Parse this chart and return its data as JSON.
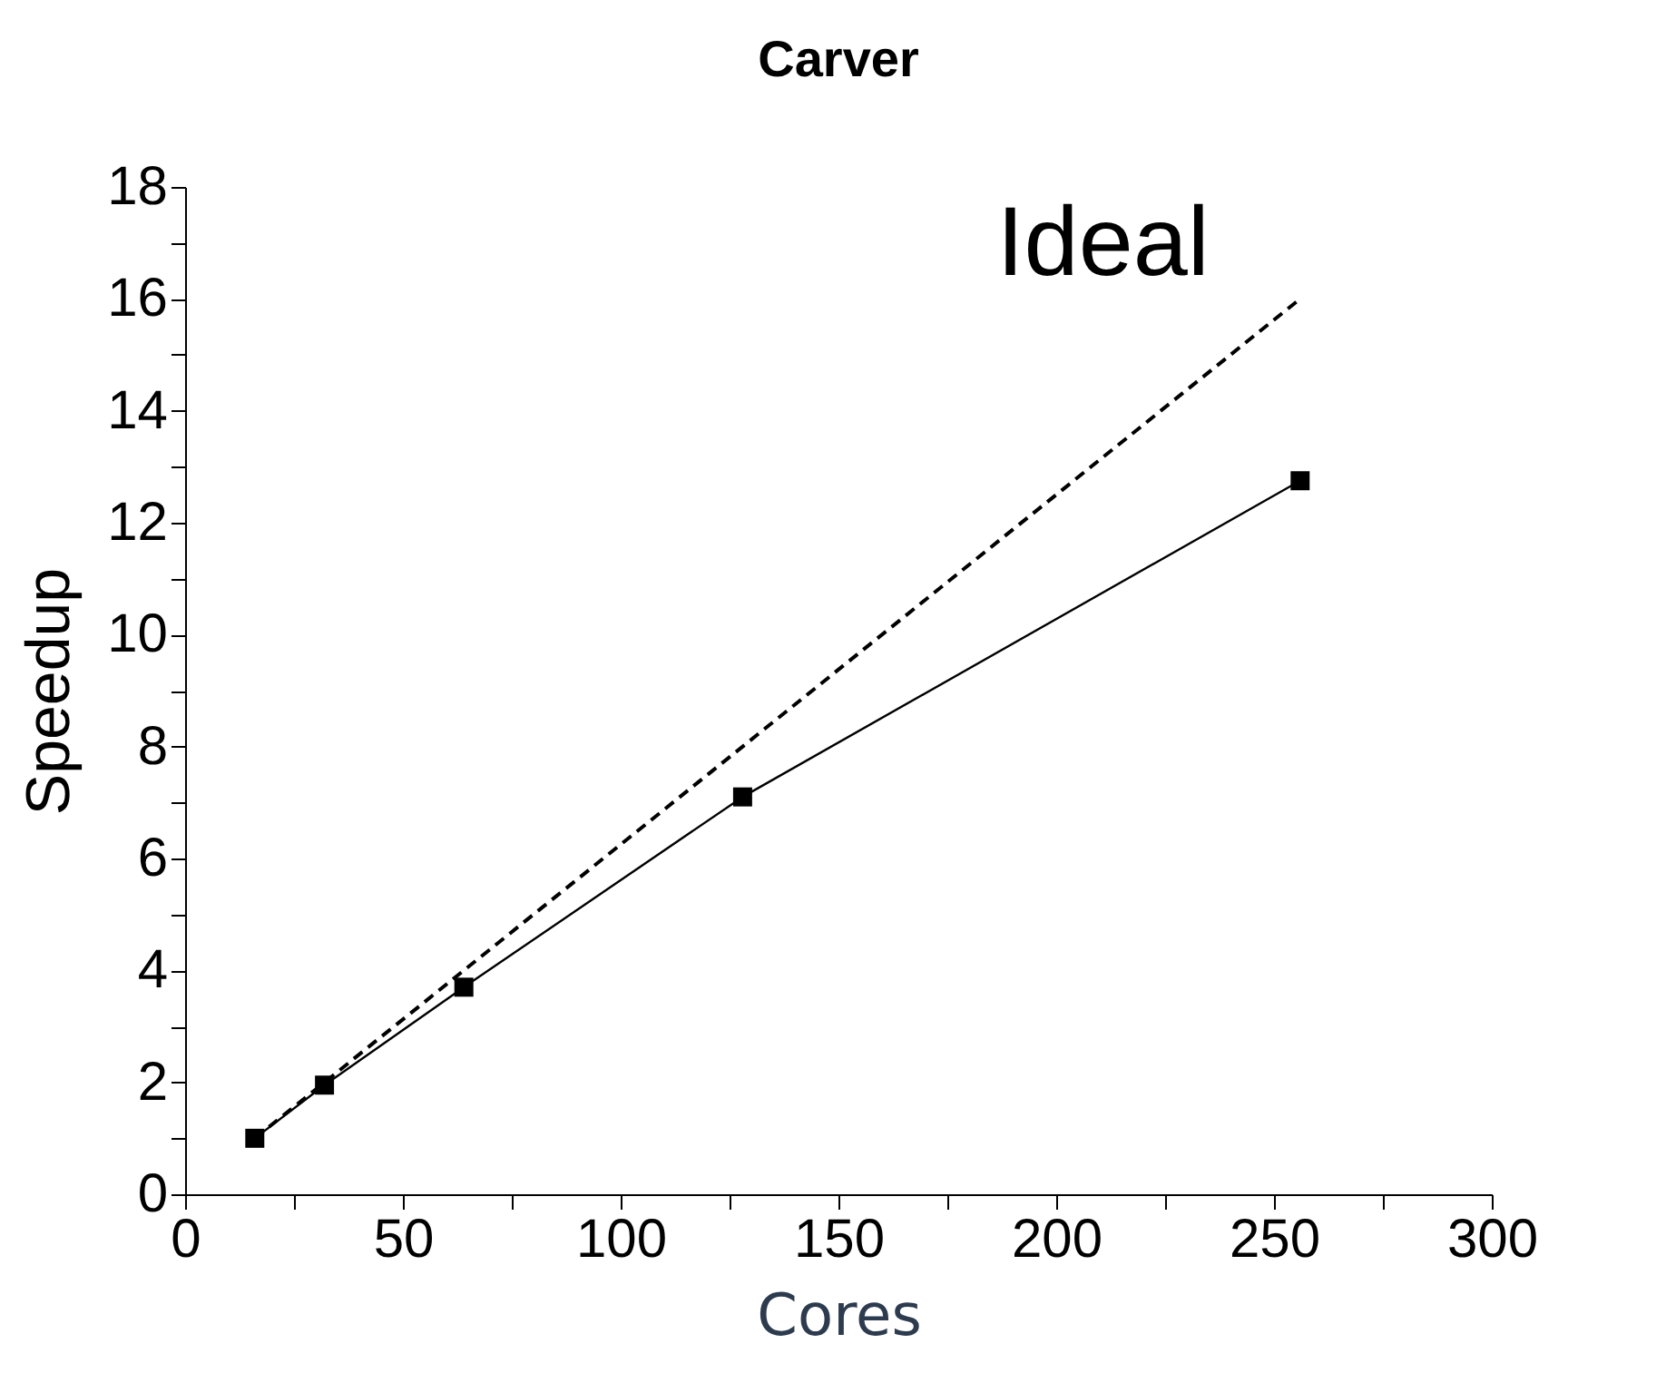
{
  "chart_data": {
    "type": "line",
    "title": "Carver",
    "xlabel": "Cores",
    "ylabel": "Speedup",
    "xlim": [
      0,
      300
    ],
    "ylim": [
      0,
      18
    ],
    "xticks": [
      0,
      {
        "value": 25,
        "label": null
      },
      50,
      {
        "value": 75,
        "label": null
      },
      100,
      {
        "value": 125,
        "label": null
      },
      150,
      {
        "value": 175,
        "label": null
      },
      200,
      {
        "value": 225,
        "label": null
      },
      250,
      {
        "value": 275,
        "label": null
      },
      300
    ],
    "yticks": [
      0,
      {
        "value": 1,
        "label": null
      },
      2,
      {
        "value": 3,
        "label": null
      },
      4,
      {
        "value": 5,
        "label": null
      },
      6,
      {
        "value": 7,
        "label": null
      },
      8,
      {
        "value": 9,
        "label": null
      },
      10,
      {
        "value": 11,
        "label": null
      },
      12,
      {
        "value": 13,
        "label": null
      },
      14,
      {
        "value": 15,
        "label": null
      },
      16,
      {
        "value": 17,
        "label": null
      },
      18
    ],
    "grid": false,
    "series": [
      {
        "color": "#000000",
        "marker": "square",
        "line_style": "solid",
        "x": [
          16,
          32,
          64,
          128,
          256
        ],
        "values": [
          1,
          1.95,
          3.7,
          7.1,
          12.75
        ]
      },
      {
        "name": "Ideal",
        "color": "#000000",
        "marker": "none",
        "line_style": "dashed",
        "x": [
          16,
          256
        ],
        "values": [
          1,
          16
        ]
      }
    ]
  }
}
